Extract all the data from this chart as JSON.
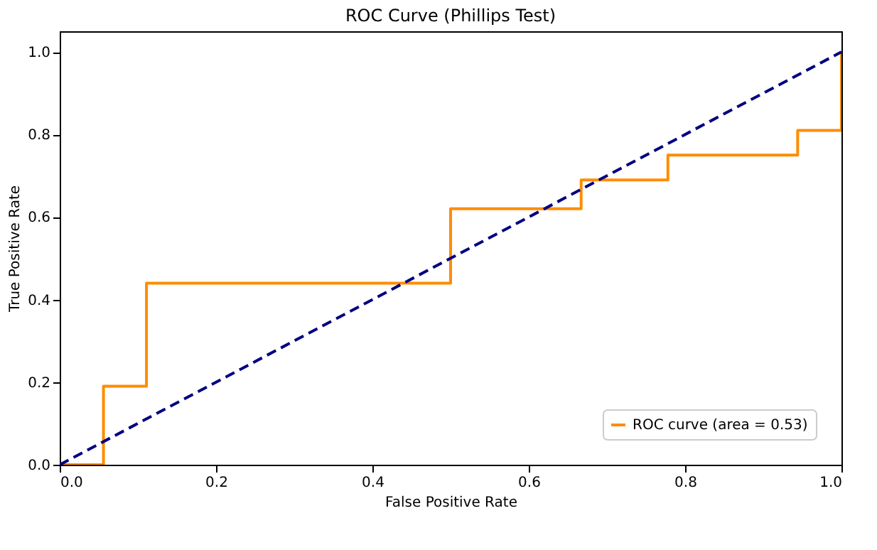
{
  "chart_data": {
    "type": "step",
    "title": "ROC Curve (Phillips Test)",
    "xlabel": "False Positive Rate",
    "ylabel": "True Positive Rate",
    "xlim": [
      0,
      1
    ],
    "ylim": [
      0,
      1.05
    ],
    "xticks": [
      {
        "value": 0,
        "label": "0.0"
      },
      {
        "value": 0.2,
        "label": "0.2"
      },
      {
        "value": 0.4,
        "label": "0.4"
      },
      {
        "value": 0.6,
        "label": "0.6"
      },
      {
        "value": 0.8,
        "label": "0.8"
      },
      {
        "value": 1,
        "label": "1.0"
      }
    ],
    "yticks": [
      {
        "value": 0,
        "label": "0.0"
      },
      {
        "value": 0.2,
        "label": "0.2"
      },
      {
        "value": 0.4,
        "label": "0.4"
      },
      {
        "value": 0.6,
        "label": "0.6"
      },
      {
        "value": 0.8,
        "label": "0.8"
      },
      {
        "value": 1,
        "label": "1.0"
      }
    ],
    "grid": false,
    "legend": "bottom right",
    "series": [
      {
        "name": "ROC curve (area = 0.53)",
        "color": "#ff8c00",
        "line_style": "solid",
        "x": [
          0,
          0.056,
          0.111,
          0.5,
          0.667,
          0.778,
          0.944,
          1,
          1
        ],
        "values": [
          0,
          0.19,
          0.44,
          0.62,
          0.69,
          0.75,
          0.81,
          0.81,
          1
        ]
      },
      {
        "type": "line",
        "color": "#000080",
        "line_style": "dashed",
        "x": [
          0,
          1
        ],
        "values": [
          0,
          1
        ]
      }
    ]
  }
}
